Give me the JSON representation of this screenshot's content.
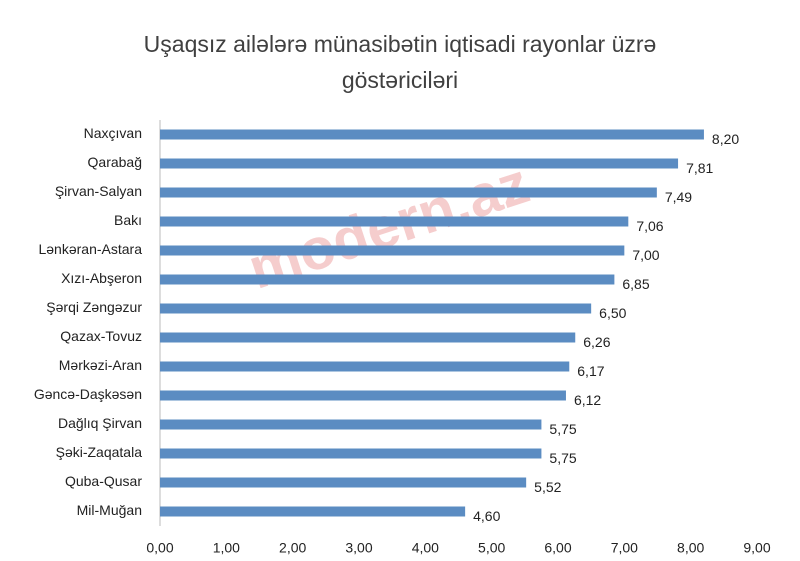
{
  "chart_data": {
    "type": "hbar",
    "title": "Uşaqsız ailələrə münasibətin  iqtisadi rayonlar üzrə göstəriciləri",
    "watermark": "modern.az",
    "categories": [
      "Naxçıvan",
      "Qarabağ",
      "Şirvan-Salyan",
      "Bakı",
      "Lənkəran-Astara",
      "Xızı-Abşeron",
      "Şərqi Zəngəzur",
      "Qazax-Tovuz",
      "Mərkəzi-Aran",
      "Gəncə-Daşkəsən",
      "Dağlıq Şirvan",
      "Şəki-Zaqatala",
      "Quba-Qusar",
      "Mil-Muğan"
    ],
    "values": [
      8.2,
      7.81,
      7.49,
      7.06,
      7.0,
      6.85,
      6.5,
      6.26,
      6.17,
      6.12,
      5.75,
      5.75,
      5.52,
      4.6
    ],
    "value_labels": [
      "8,20",
      "7,81",
      "7,49",
      "7,06",
      "7,00",
      "6,85",
      "6,50",
      "6,26",
      "6,17",
      "6,12",
      "5,75",
      "5,75",
      "5,52",
      "4,60"
    ],
    "color": "#5b8cc2",
    "xlim": [
      0,
      9
    ],
    "xticks": [
      {
        "value": 0,
        "label": "0,00"
      },
      {
        "value": 1,
        "label": "1,00"
      },
      {
        "value": 2,
        "label": "2,00"
      },
      {
        "value": 3,
        "label": "3,00"
      },
      {
        "value": 4,
        "label": "4,00"
      },
      {
        "value": 5,
        "label": "5,00"
      },
      {
        "value": 6,
        "label": "6,00"
      },
      {
        "value": 7,
        "label": "7,00"
      },
      {
        "value": 8,
        "label": "8,00"
      },
      {
        "value": 9,
        "label": "9,00"
      }
    ],
    "grid": false
  }
}
